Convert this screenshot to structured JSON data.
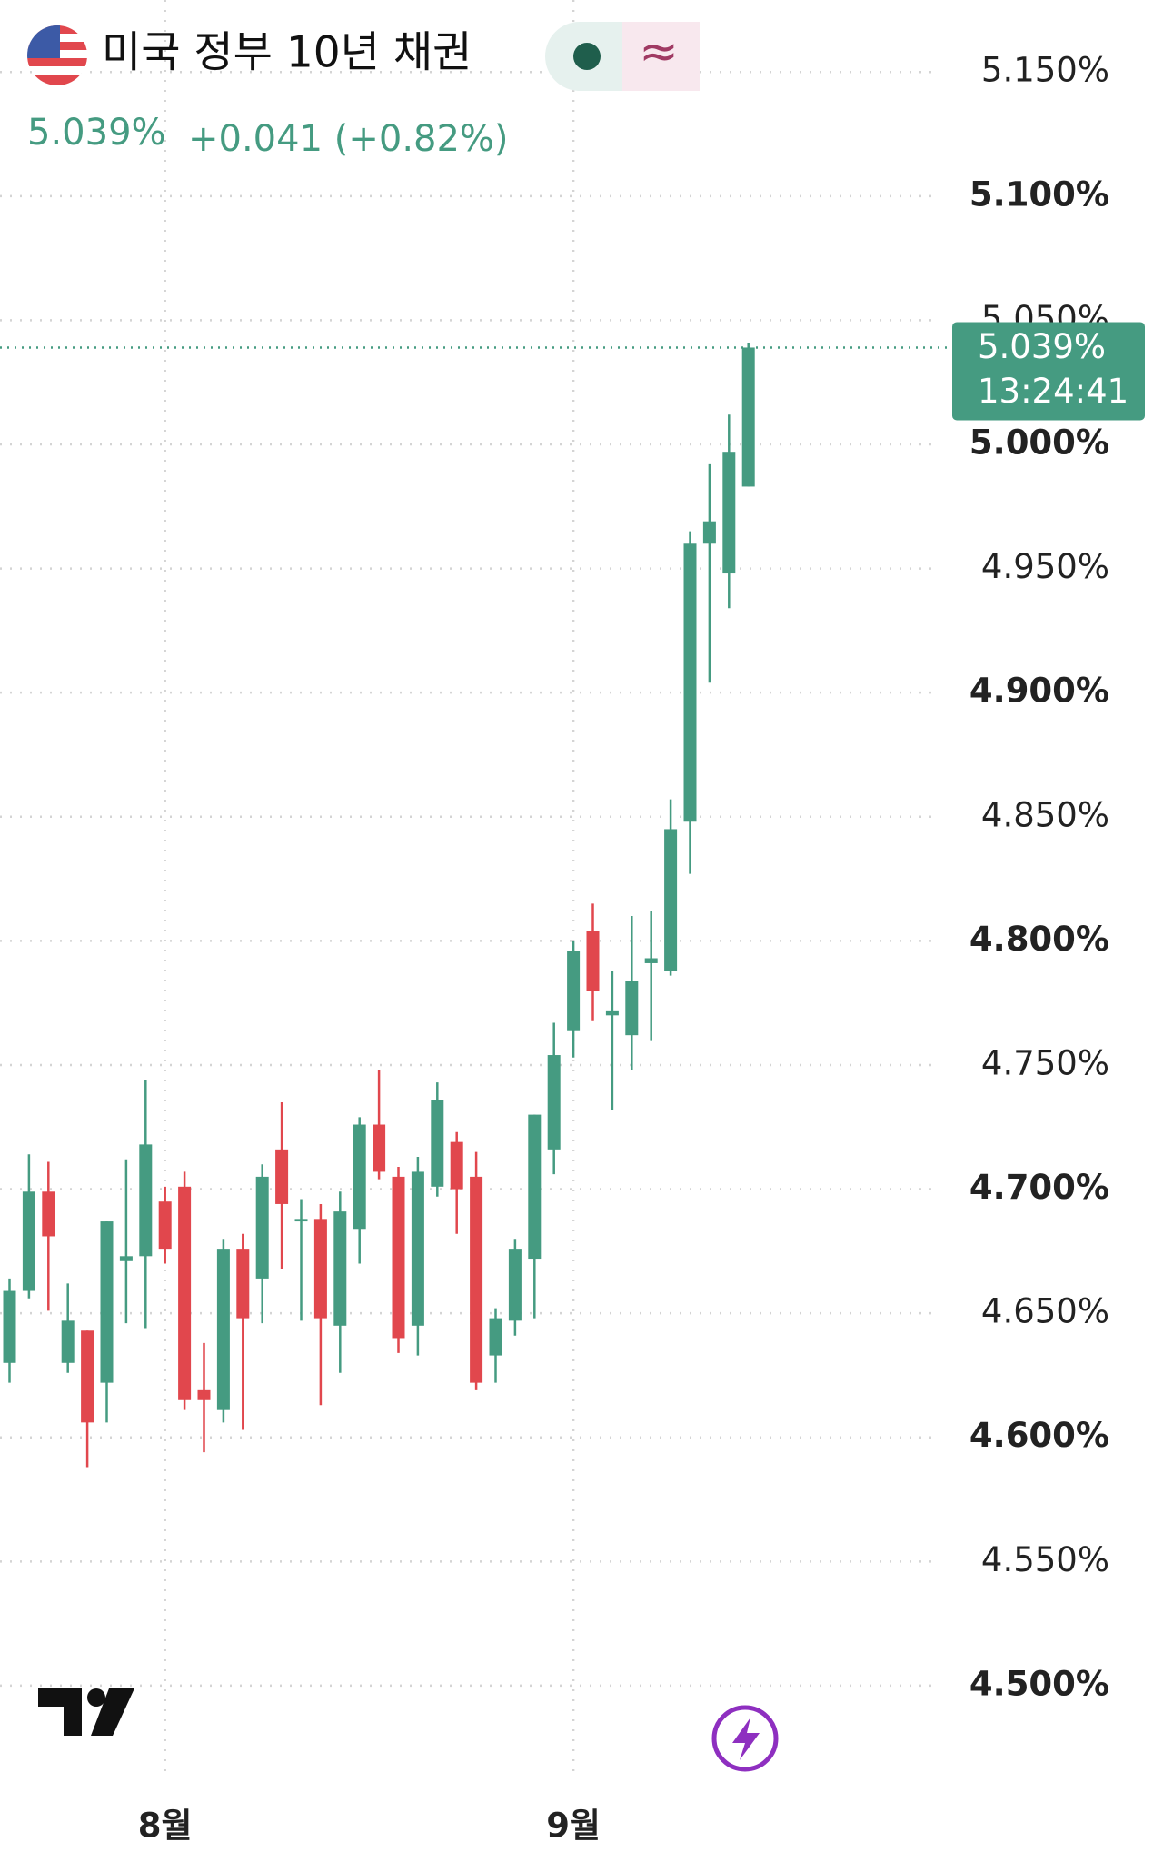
{
  "chart_data": {
    "type": "candlestick",
    "title": "미국 정부 10년 채권",
    "price": "5.039%",
    "change": "+0.041 (+0.82%)",
    "countdown": "13:24:41",
    "up_color": "#459b81",
    "down_color": "#e1474d",
    "categories": [
      null,
      null,
      null,
      null,
      null,
      null,
      null,
      null,
      "8월",
      null,
      null,
      null,
      null,
      null,
      null,
      null,
      null,
      null,
      null,
      null,
      null,
      null,
      null,
      null,
      null,
      null,
      null,
      null,
      null,
      "9월",
      null,
      null,
      null,
      null,
      null,
      null,
      null,
      null,
      null
    ],
    "open": [
      4.63,
      4.659,
      4.699,
      4.63,
      4.643,
      4.622,
      4.671,
      4.673,
      4.695,
      4.701,
      4.619,
      4.611,
      4.676,
      4.664,
      4.716,
      4.687,
      4.688,
      4.645,
      4.684,
      4.726,
      4.705,
      4.645,
      4.701,
      4.719,
      4.705,
      4.633,
      4.647,
      4.672,
      4.716,
      4.764,
      4.804,
      4.77,
      4.762,
      4.791,
      4.788,
      4.848,
      4.96,
      4.948,
      4.983
    ],
    "high": [
      4.664,
      4.714,
      4.711,
      4.662,
      4.643,
      4.687,
      4.712,
      4.744,
      4.701,
      4.707,
      4.638,
      4.68,
      4.682,
      4.71,
      4.735,
      4.696,
      4.694,
      4.699,
      4.729,
      4.748,
      4.709,
      4.713,
      4.743,
      4.723,
      4.715,
      4.652,
      4.68,
      4.73,
      4.767,
      4.8,
      4.815,
      4.788,
      4.81,
      4.812,
      4.857,
      4.965,
      4.992,
      5.012,
      5.041
    ],
    "low": [
      4.622,
      4.656,
      4.651,
      4.626,
      4.588,
      4.606,
      4.646,
      4.644,
      4.67,
      4.611,
      4.594,
      4.606,
      4.603,
      4.646,
      4.668,
      4.647,
      4.613,
      4.626,
      4.67,
      4.704,
      4.634,
      4.633,
      4.697,
      4.682,
      4.619,
      4.622,
      4.641,
      4.648,
      4.706,
      4.753,
      4.768,
      4.732,
      4.748,
      4.76,
      4.786,
      4.827,
      4.904,
      4.934,
      4.983
    ],
    "close": [
      4.659,
      4.699,
      4.681,
      4.647,
      4.606,
      4.687,
      4.673,
      4.718,
      4.676,
      4.615,
      4.615,
      4.676,
      4.648,
      4.705,
      4.694,
      4.688,
      4.648,
      4.691,
      4.726,
      4.707,
      4.64,
      4.707,
      4.736,
      4.7,
      4.622,
      4.648,
      4.676,
      4.73,
      4.754,
      4.796,
      4.78,
      4.772,
      4.784,
      4.793,
      4.845,
      4.96,
      4.969,
      4.997,
      5.039
    ],
    "ylim": [
      4.463,
      5.179
    ],
    "yticks": [
      {
        "value": 5.15,
        "label": "5.150%"
      },
      {
        "value": 5.1,
        "label": "5.100%"
      },
      {
        "value": 5.05,
        "label": "5.050%"
      },
      {
        "value": 5.0,
        "label": "5.000%"
      },
      {
        "value": 4.95,
        "label": "4.950%"
      },
      {
        "value": 4.9,
        "label": "4.900%"
      },
      {
        "value": 4.85,
        "label": "4.850%"
      },
      {
        "value": 4.8,
        "label": "4.800%"
      },
      {
        "value": 4.75,
        "label": "4.750%"
      },
      {
        "value": 4.7,
        "label": "4.700%"
      },
      {
        "value": 4.65,
        "label": "4.650%"
      },
      {
        "value": 4.6,
        "label": "4.600%"
      },
      {
        "value": 4.55,
        "label": "4.550%"
      },
      {
        "value": 4.5,
        "label": "4.500%"
      }
    ],
    "grid": true
  }
}
